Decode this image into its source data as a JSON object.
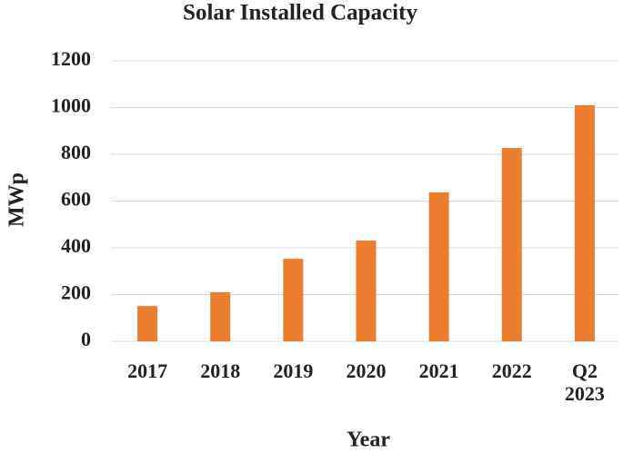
{
  "chart_data": {
    "type": "bar",
    "title": "Solar Installed Capacity",
    "x_label": "Year",
    "y_label": "MWp",
    "categories": [
      "2017",
      "2018",
      "2019",
      "2020",
      "2021",
      "2022",
      "Q2 2023"
    ],
    "values": [
      151,
      210,
      353,
      431,
      637,
      827,
      1010
    ],
    "color": "#ed7d31",
    "ylim": [
      0,
      1200
    ],
    "yticks": [
      0,
      200,
      400,
      600,
      800,
      1000,
      1200
    ],
    "grid": true
  }
}
